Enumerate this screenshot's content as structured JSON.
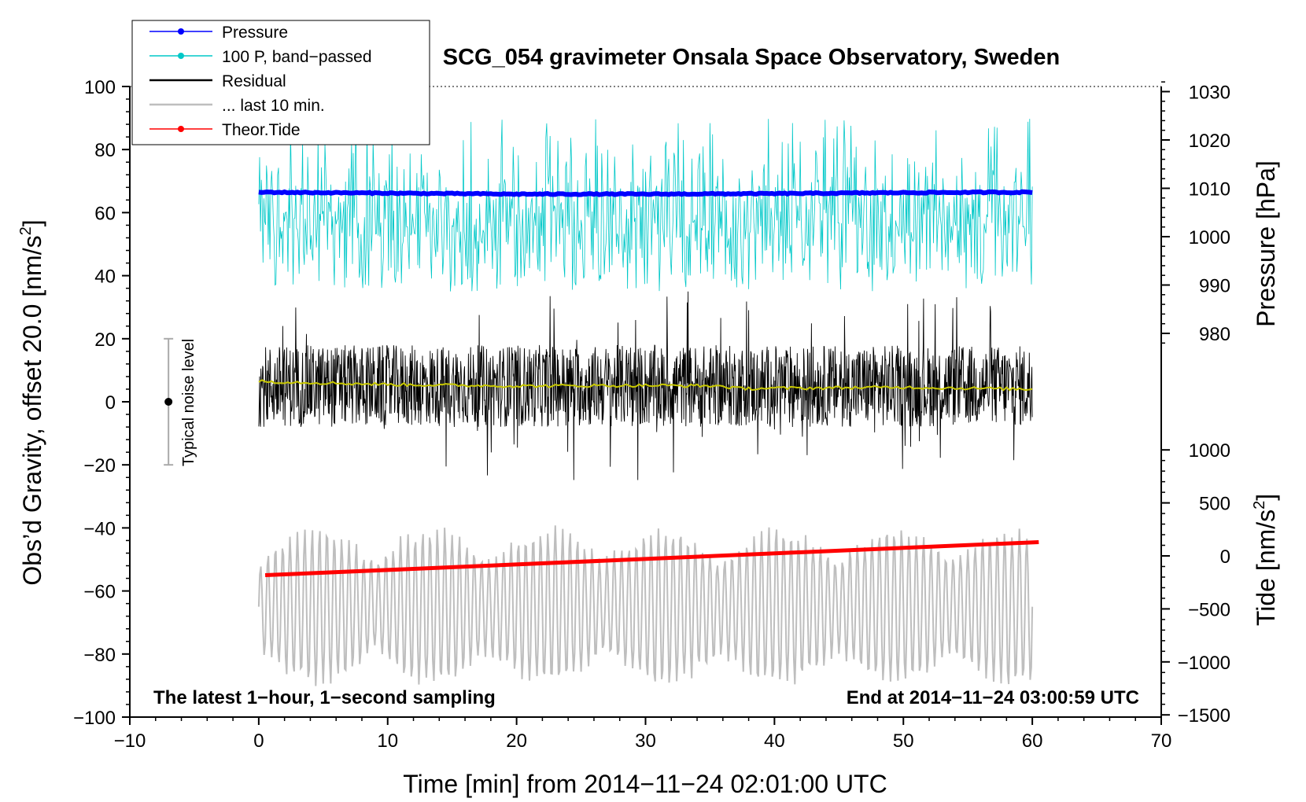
{
  "chart_data": {
    "type": "line",
    "title": "SCG_054 gravimeter Onsala Space Observatory, Sweden",
    "xlabel": "Time [min] from 2014−11−24 02:01:00 UTC",
    "ylabel_prefix": "Obs’d Gravity, offset 20.0 [nm/s",
    "ylabel_exp": "2",
    "ylabel_suffix": "]",
    "xlim": [
      -10,
      70
    ],
    "ylim": [
      -100,
      100
    ],
    "x_ticks": [
      -10,
      0,
      10,
      20,
      30,
      40,
      50,
      60,
      70
    ],
    "x_tick_labels": [
      "−10",
      "0",
      "10",
      "20",
      "30",
      "40",
      "50",
      "60",
      "70"
    ],
    "y_ticks": [
      -100,
      -80,
      -60,
      -40,
      -20,
      0,
      20,
      40,
      60,
      80,
      100
    ],
    "y_tick_labels": [
      "−100",
      "−80",
      "−60",
      "−40",
      "−20",
      "0",
      "20",
      "40",
      "60",
      "80",
      "100"
    ],
    "pressure_axis": {
      "label": "Pressure [hPa]",
      "ticks": [
        980,
        990,
        1000,
        1010,
        1020,
        1030
      ],
      "tick_labels": [
        "980",
        "990",
        "1000",
        "1010",
        "1020",
        "1030"
      ],
      "minor_step": 2
    },
    "tide_axis": {
      "label_prefix": "Tide [nm/s",
      "label_exp": "2",
      "label_suffix": "]",
      "ticks": [
        -1500,
        -1000,
        -500,
        0,
        500,
        1000
      ],
      "tick_labels": [
        "−1500",
        "−1000",
        "−500",
        "0",
        "500",
        "1000"
      ],
      "minor_step": 100
    },
    "legend": {
      "position": "top-left",
      "entries": [
        {
          "label": "Pressure",
          "color": "#0000ff",
          "style": "line-dot"
        },
        {
          "label": "100 P, band−passed",
          "color": "#00c8c8",
          "style": "line-dot"
        },
        {
          "label": "Residual",
          "color": "#000000",
          "style": "line"
        },
        {
          "label": "... last 10 min.",
          "color": "#bebebe",
          "style": "line"
        },
        {
          "label": "Theor.Tide",
          "color": "#ff0000",
          "style": "line-dot"
        }
      ]
    },
    "noise_indicator": {
      "label": "Typical noise level",
      "x": -7,
      "center": 0,
      "low": -20,
      "high": 20
    },
    "annotations": {
      "left": "The latest 1−hour, 1−second sampling",
      "right": "End at 2014−11−24 03:00:59 UTC"
    },
    "series": [
      {
        "name": "Pressure",
        "color": "#0000ff",
        "points": [
          [
            0,
            1009.2
          ],
          [
            10,
            1009.0
          ],
          [
            20,
            1008.8
          ],
          [
            30,
            1008.8
          ],
          [
            40,
            1008.9
          ],
          [
            50,
            1009.1
          ],
          [
            60,
            1009.2
          ]
        ]
      },
      {
        "name": "100 P, band−passed",
        "color": "#00c8c8",
        "baseline": 58,
        "envelope_low": 35,
        "envelope_high": 90,
        "x_range": [
          0,
          60
        ]
      },
      {
        "name": "Residual",
        "color": "#000000",
        "baseline": 5,
        "envelope_low": -34,
        "envelope_high": 46,
        "x_range": [
          0,
          60
        ]
      },
      {
        "name": "Residual mean",
        "color": "#c8c800",
        "points": [
          [
            0,
            6.5
          ],
          [
            10,
            5.5
          ],
          [
            20,
            5.0
          ],
          [
            30,
            5.2
          ],
          [
            36,
            5.0
          ],
          [
            37,
            4.2
          ],
          [
            50,
            4.6
          ],
          [
            60,
            4.0
          ]
        ]
      },
      {
        "name": "... last 10 min.",
        "color": "#bebebe",
        "baseline": -65,
        "envelope_low": -93,
        "envelope_high": -30,
        "x_range": [
          0,
          60
        ]
      },
      {
        "name": "Theor.Tide",
        "color": "#ff0000",
        "points": [
          [
            0.5,
            -55
          ],
          [
            60.5,
            -44.5
          ]
        ]
      }
    ]
  }
}
